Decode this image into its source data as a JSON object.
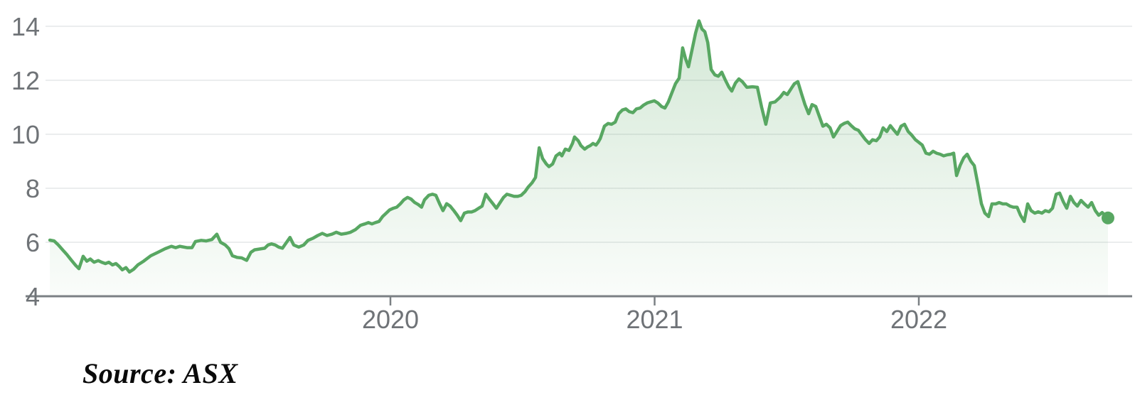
{
  "figure": {
    "source_note": "Source: ASX"
  },
  "chart_data": {
    "type": "area",
    "title": "",
    "xlabel": "",
    "ylabel": "",
    "legend": "none",
    "grid": "horizontal",
    "line_color": "#58a762",
    "fill_color": "#58a762",
    "fill_opacity_top": 0.26,
    "fill_opacity_bottom": 0.03,
    "grid_color": "#ebedee",
    "axis_color": "#7b8084",
    "label_color": "#6f7377",
    "xlim": [
      2018.68,
      2022.82
    ],
    "ylim": [
      4,
      14.5
    ],
    "x_ticks": [
      {
        "t": 2020,
        "label": "2020"
      },
      {
        "t": 2021,
        "label": "2021"
      },
      {
        "t": 2022,
        "label": "2022"
      }
    ],
    "y_ticks": [
      {
        "v": 14,
        "label": "14"
      },
      {
        "v": 12,
        "label": "12"
      },
      {
        "v": 10,
        "label": "10"
      },
      {
        "v": 8,
        "label": "8"
      },
      {
        "v": 6,
        "label": "6"
      },
      {
        "v": 4,
        "label": "4"
      }
    ],
    "end_marker": {
      "t": 2022.716,
      "v": 6.9
    },
    "series": [
      {
        "points": [
          [
            2018.711,
            6.08
          ],
          [
            2018.727,
            6.05
          ],
          [
            2018.743,
            5.9
          ],
          [
            2018.759,
            5.72
          ],
          [
            2018.775,
            5.55
          ],
          [
            2018.791,
            5.35
          ],
          [
            2018.808,
            5.15
          ],
          [
            2018.821,
            5.02
          ],
          [
            2018.837,
            5.48
          ],
          [
            2018.851,
            5.3
          ],
          [
            2018.864,
            5.38
          ],
          [
            2018.878,
            5.26
          ],
          [
            2018.894,
            5.32
          ],
          [
            2018.907,
            5.26
          ],
          [
            2018.921,
            5.21
          ],
          [
            2018.934,
            5.26
          ],
          [
            2018.948,
            5.16
          ],
          [
            2018.961,
            5.21
          ],
          [
            2018.974,
            5.1
          ],
          [
            2018.985,
            4.98
          ],
          [
            2018.999,
            5.06
          ],
          [
            2019.012,
            4.9
          ],
          [
            2019.028,
            5.0
          ],
          [
            2019.044,
            5.16
          ],
          [
            2019.066,
            5.3
          ],
          [
            2019.093,
            5.5
          ],
          [
            2019.12,
            5.63
          ],
          [
            2019.147,
            5.76
          ],
          [
            2019.171,
            5.85
          ],
          [
            2019.187,
            5.8
          ],
          [
            2019.203,
            5.85
          ],
          [
            2019.23,
            5.8
          ],
          [
            2019.249,
            5.8
          ],
          [
            2019.262,
            6.03
          ],
          [
            2019.284,
            6.07
          ],
          [
            2019.303,
            6.05
          ],
          [
            2019.324,
            6.1
          ],
          [
            2019.343,
            6.3
          ],
          [
            2019.357,
            6.0
          ],
          [
            2019.375,
            5.9
          ],
          [
            2019.389,
            5.76
          ],
          [
            2019.402,
            5.5
          ],
          [
            2019.419,
            5.44
          ],
          [
            2019.437,
            5.42
          ],
          [
            2019.456,
            5.33
          ],
          [
            2019.472,
            5.63
          ],
          [
            2019.486,
            5.72
          ],
          [
            2019.505,
            5.75
          ],
          [
            2019.524,
            5.78
          ],
          [
            2019.537,
            5.9
          ],
          [
            2019.55,
            5.94
          ],
          [
            2019.564,
            5.9
          ],
          [
            2019.577,
            5.82
          ],
          [
            2019.591,
            5.78
          ],
          [
            2019.607,
            6.0
          ],
          [
            2019.62,
            6.18
          ],
          [
            2019.634,
            5.9
          ],
          [
            2019.653,
            5.82
          ],
          [
            2019.672,
            5.9
          ],
          [
            2019.688,
            6.07
          ],
          [
            2019.707,
            6.15
          ],
          [
            2019.725,
            6.25
          ],
          [
            2019.742,
            6.33
          ],
          [
            2019.76,
            6.25
          ],
          [
            2019.779,
            6.3
          ],
          [
            2019.795,
            6.37
          ],
          [
            2019.814,
            6.3
          ],
          [
            2019.833,
            6.33
          ],
          [
            2019.849,
            6.37
          ],
          [
            2019.868,
            6.47
          ],
          [
            2019.887,
            6.63
          ],
          [
            2019.903,
            6.68
          ],
          [
            2019.917,
            6.73
          ],
          [
            2019.93,
            6.68
          ],
          [
            2019.943,
            6.73
          ],
          [
            2019.957,
            6.77
          ],
          [
            2019.97,
            6.95
          ],
          [
            2019.984,
            7.08
          ],
          [
            2019.997,
            7.2
          ],
          [
            2020.011,
            7.26
          ],
          [
            2020.024,
            7.3
          ],
          [
            2020.038,
            7.43
          ],
          [
            2020.051,
            7.57
          ],
          [
            2020.065,
            7.66
          ],
          [
            2020.078,
            7.6
          ],
          [
            2020.092,
            7.47
          ],
          [
            2020.105,
            7.4
          ],
          [
            2020.118,
            7.3
          ],
          [
            2020.129,
            7.57
          ],
          [
            2020.145,
            7.74
          ],
          [
            2020.159,
            7.78
          ],
          [
            2020.172,
            7.74
          ],
          [
            2020.186,
            7.43
          ],
          [
            2020.199,
            7.17
          ],
          [
            2020.213,
            7.43
          ],
          [
            2020.226,
            7.34
          ],
          [
            2020.24,
            7.17
          ],
          [
            2020.253,
            7.0
          ],
          [
            2020.266,
            6.8
          ],
          [
            2020.28,
            7.08
          ],
          [
            2020.293,
            7.12
          ],
          [
            2020.307,
            7.12
          ],
          [
            2020.32,
            7.17
          ],
          [
            2020.334,
            7.26
          ],
          [
            2020.347,
            7.34
          ],
          [
            2020.361,
            7.78
          ],
          [
            2020.374,
            7.6
          ],
          [
            2020.388,
            7.43
          ],
          [
            2020.401,
            7.26
          ],
          [
            2020.415,
            7.47
          ],
          [
            2020.428,
            7.66
          ],
          [
            2020.441,
            7.78
          ],
          [
            2020.455,
            7.74
          ],
          [
            2020.468,
            7.7
          ],
          [
            2020.482,
            7.7
          ],
          [
            2020.495,
            7.74
          ],
          [
            2020.509,
            7.87
          ],
          [
            2020.522,
            8.05
          ],
          [
            2020.536,
            8.2
          ],
          [
            2020.549,
            8.4
          ],
          [
            2020.563,
            9.5
          ],
          [
            2020.576,
            9.1
          ],
          [
            2020.59,
            8.9
          ],
          [
            2020.6,
            8.8
          ],
          [
            2020.614,
            8.9
          ],
          [
            2020.627,
            9.2
          ],
          [
            2020.641,
            9.3
          ],
          [
            2020.649,
            9.2
          ],
          [
            2020.662,
            9.45
          ],
          [
            2020.676,
            9.4
          ],
          [
            2020.689,
            9.66
          ],
          [
            2020.697,
            9.9
          ],
          [
            2020.711,
            9.76
          ],
          [
            2020.721,
            9.58
          ],
          [
            2020.735,
            9.45
          ],
          [
            2020.746,
            9.53
          ],
          [
            2020.756,
            9.58
          ],
          [
            2020.767,
            9.66
          ],
          [
            2020.778,
            9.6
          ],
          [
            2020.786,
            9.7
          ],
          [
            2020.794,
            9.84
          ],
          [
            2020.81,
            10.3
          ],
          [
            2020.824,
            10.4
          ],
          [
            2020.837,
            10.37
          ],
          [
            2020.851,
            10.45
          ],
          [
            2020.864,
            10.76
          ],
          [
            2020.878,
            10.9
          ],
          [
            2020.891,
            10.94
          ],
          [
            2020.904,
            10.84
          ],
          [
            2020.918,
            10.8
          ],
          [
            2020.931,
            10.94
          ],
          [
            2020.945,
            10.97
          ],
          [
            2020.958,
            11.08
          ],
          [
            2020.972,
            11.16
          ],
          [
            2020.985,
            11.2
          ],
          [
            2020.999,
            11.24
          ],
          [
            2021.012,
            11.16
          ],
          [
            2021.026,
            11.03
          ],
          [
            2021.039,
            10.97
          ],
          [
            2021.052,
            11.2
          ],
          [
            2021.066,
            11.55
          ],
          [
            2021.079,
            11.87
          ],
          [
            2021.093,
            12.08
          ],
          [
            2021.106,
            13.2
          ],
          [
            2021.117,
            12.8
          ],
          [
            2021.128,
            12.5
          ],
          [
            2021.141,
            13.1
          ],
          [
            2021.155,
            13.75
          ],
          [
            2021.168,
            14.2
          ],
          [
            2021.179,
            13.9
          ],
          [
            2021.19,
            13.8
          ],
          [
            2021.201,
            13.4
          ],
          [
            2021.214,
            12.4
          ],
          [
            2021.228,
            12.2
          ],
          [
            2021.241,
            12.15
          ],
          [
            2021.254,
            12.3
          ],
          [
            2021.268,
            12.0
          ],
          [
            2021.281,
            11.75
          ],
          [
            2021.292,
            11.6
          ],
          [
            2021.306,
            11.9
          ],
          [
            2021.319,
            12.05
          ],
          [
            2021.332,
            11.95
          ],
          [
            2021.349,
            11.74
          ],
          [
            2021.37,
            11.76
          ],
          [
            2021.389,
            11.74
          ],
          [
            2021.405,
            11.0
          ],
          [
            2021.421,
            10.37
          ],
          [
            2021.438,
            11.16
          ],
          [
            2021.456,
            11.2
          ],
          [
            2021.475,
            11.37
          ],
          [
            2021.489,
            11.55
          ],
          [
            2021.502,
            11.47
          ],
          [
            2021.516,
            11.68
          ],
          [
            2021.529,
            11.87
          ],
          [
            2021.542,
            11.95
          ],
          [
            2021.556,
            11.5
          ],
          [
            2021.569,
            11.1
          ],
          [
            2021.583,
            10.76
          ],
          [
            2021.596,
            11.1
          ],
          [
            2021.61,
            11.03
          ],
          [
            2021.623,
            10.68
          ],
          [
            2021.637,
            10.3
          ],
          [
            2021.65,
            10.37
          ],
          [
            2021.664,
            10.24
          ],
          [
            2021.677,
            9.9
          ],
          [
            2021.69,
            10.1
          ],
          [
            2021.704,
            10.32
          ],
          [
            2021.717,
            10.4
          ],
          [
            2021.731,
            10.45
          ],
          [
            2021.744,
            10.32
          ],
          [
            2021.758,
            10.2
          ],
          [
            2021.771,
            10.15
          ],
          [
            2021.785,
            9.97
          ],
          [
            2021.798,
            9.8
          ],
          [
            2021.812,
            9.66
          ],
          [
            2021.825,
            9.8
          ],
          [
            2021.839,
            9.76
          ],
          [
            2021.852,
            9.9
          ],
          [
            2021.865,
            10.24
          ],
          [
            2021.879,
            10.1
          ],
          [
            2021.892,
            10.32
          ],
          [
            2021.906,
            10.15
          ],
          [
            2021.919,
            10.0
          ],
          [
            2021.933,
            10.3
          ],
          [
            2021.946,
            10.37
          ],
          [
            2021.96,
            10.1
          ],
          [
            2021.973,
            9.97
          ],
          [
            2021.987,
            9.8
          ],
          [
            2022.0,
            9.7
          ],
          [
            2022.013,
            9.6
          ],
          [
            2022.027,
            9.3
          ],
          [
            2022.04,
            9.26
          ],
          [
            2022.054,
            9.37
          ],
          [
            2022.067,
            9.3
          ],
          [
            2022.081,
            9.26
          ],
          [
            2022.094,
            9.2
          ],
          [
            2022.108,
            9.24
          ],
          [
            2022.121,
            9.26
          ],
          [
            2022.132,
            9.3
          ],
          [
            2022.143,
            8.47
          ],
          [
            2022.156,
            8.84
          ],
          [
            2022.17,
            9.13
          ],
          [
            2022.183,
            9.26
          ],
          [
            2022.197,
            9.0
          ],
          [
            2022.21,
            8.84
          ],
          [
            2022.224,
            8.13
          ],
          [
            2022.237,
            7.43
          ],
          [
            2022.25,
            7.08
          ],
          [
            2022.264,
            6.95
          ],
          [
            2022.277,
            7.42
          ],
          [
            2022.291,
            7.42
          ],
          [
            2022.304,
            7.47
          ],
          [
            2022.318,
            7.42
          ],
          [
            2022.331,
            7.42
          ],
          [
            2022.345,
            7.34
          ],
          [
            2022.358,
            7.3
          ],
          [
            2022.372,
            7.3
          ],
          [
            2022.385,
            7.0
          ],
          [
            2022.399,
            6.77
          ],
          [
            2022.412,
            7.42
          ],
          [
            2022.425,
            7.17
          ],
          [
            2022.439,
            7.08
          ],
          [
            2022.452,
            7.13
          ],
          [
            2022.466,
            7.08
          ],
          [
            2022.479,
            7.17
          ],
          [
            2022.493,
            7.13
          ],
          [
            2022.506,
            7.26
          ],
          [
            2022.52,
            7.78
          ],
          [
            2022.533,
            7.82
          ],
          [
            2022.547,
            7.5
          ],
          [
            2022.56,
            7.26
          ],
          [
            2022.574,
            7.7
          ],
          [
            2022.587,
            7.47
          ],
          [
            2022.6,
            7.34
          ],
          [
            2022.614,
            7.55
          ],
          [
            2022.627,
            7.42
          ],
          [
            2022.641,
            7.3
          ],
          [
            2022.654,
            7.47
          ],
          [
            2022.668,
            7.17
          ],
          [
            2022.681,
            7.0
          ],
          [
            2022.694,
            7.1
          ],
          [
            2022.705,
            7.0
          ],
          [
            2022.716,
            6.9
          ]
        ]
      }
    ]
  }
}
